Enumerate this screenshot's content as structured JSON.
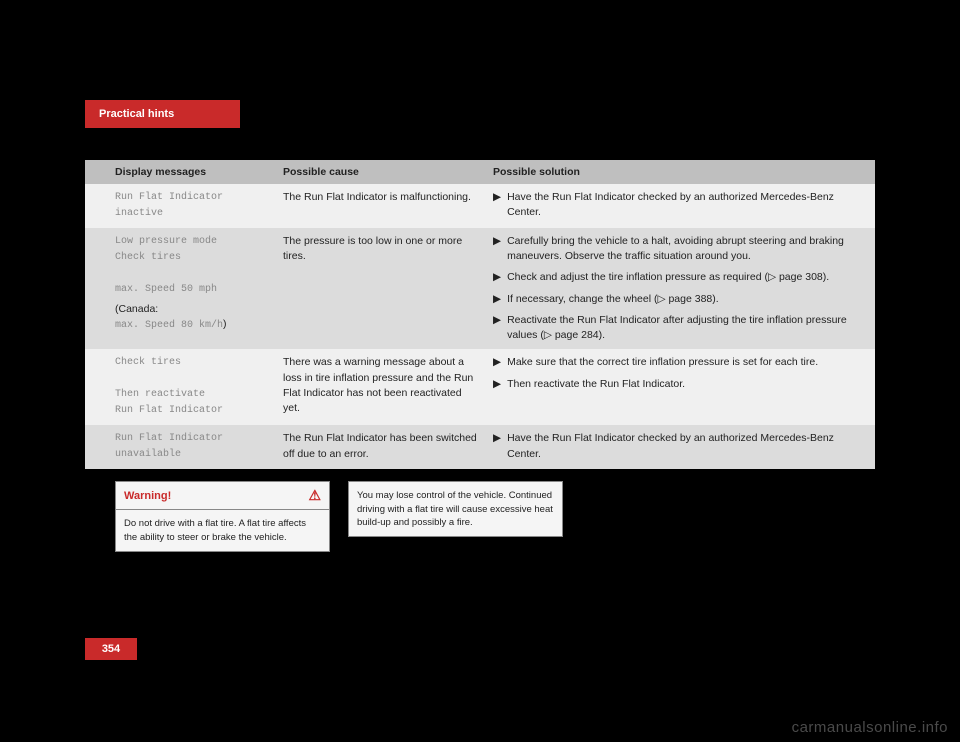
{
  "header": {
    "tab": "Practical hints"
  },
  "table": {
    "headers": {
      "col1": "Display messages",
      "col2": "Possible cause",
      "col3": "Possible solution"
    },
    "rows": [
      {
        "msg_lines": [
          "Run Flat Indicator",
          "inactive"
        ],
        "msg_extra": null,
        "cause": "The Run Flat Indicator is malfunctioning.",
        "solutions": [
          "Have the Run Flat Indicator checked by an authorized Mercedes-Benz Center."
        ]
      },
      {
        "msg_lines": [
          "Low pressure mode",
          "Check tires",
          "",
          "max. Speed 50 mph"
        ],
        "msg_extra": {
          "prefix": "(Canada:",
          "mono": "max. Speed 80 km/h",
          "suffix": ")"
        },
        "cause": "The pressure is too low in one or more tires.",
        "solutions": [
          "Carefully bring the vehicle to a halt, avoiding abrupt steering and braking maneuvers. Observe the traffic situation around you.",
          "Check and adjust the tire inflation pressure as required (▷ page 308).",
          "If necessary, change the wheel (▷ page 388).",
          "Reactivate the Run Flat Indicator after adjusting the tire inflation pressure values (▷ page 284)."
        ]
      },
      {
        "msg_lines": [
          "Check tires",
          "",
          "Then reactivate",
          "Run Flat Indicator"
        ],
        "msg_extra": null,
        "cause": "There was a warning message about a loss in tire inflation pressure and the Run Flat Indicator has not been reactivated yet.",
        "solutions": [
          "Make sure that the correct tire inflation pressure is set for each tire.",
          "Then reactivate the Run Flat Indicator."
        ]
      },
      {
        "msg_lines": [
          "Run Flat Indicator",
          "unavailable"
        ],
        "msg_extra": null,
        "cause": "The Run Flat Indicator has been switched off due to an error.",
        "solutions": [
          "Have the Run Flat Indicator checked by an authorized Mercedes-Benz Center."
        ]
      }
    ]
  },
  "warning": {
    "title": "Warning!",
    "body": "Do not drive with a flat tire. A flat tire affects the ability to steer or brake the vehicle."
  },
  "note": {
    "body": "You may lose control of the vehicle. Continued driving with a flat tire will cause excessive heat build-up and possibly a fire."
  },
  "page_number": "354",
  "watermark": "carmanualsonline.info"
}
